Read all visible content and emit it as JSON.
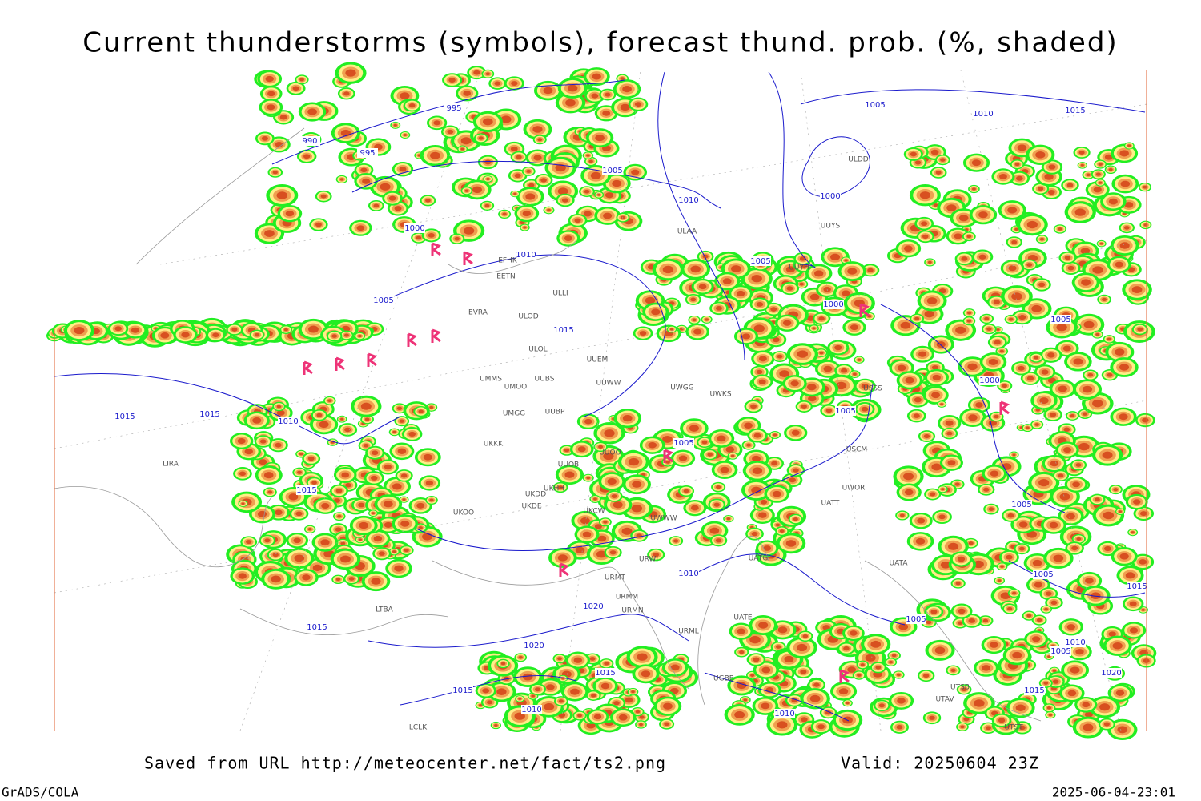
{
  "header": {
    "title": "Current thunderstorms (symbols), forecast thund. prob. (%, shaded)"
  },
  "footer": {
    "source": "Saved from URL http://meteocenter.net/fact/ts2.png",
    "valid": "Valid: 20250604 23Z",
    "software": "GrADS/COLA",
    "timestamp": "2025-06-04-23:01"
  },
  "isobar_labels": [
    995,
    990,
    995,
    1005,
    1010,
    1005,
    1010,
    1015,
    1000,
    1000,
    1010,
    1005,
    1005,
    1000,
    1015,
    1005,
    1000,
    1015,
    1015,
    1010,
    1005,
    1005,
    1015,
    1005,
    1010,
    1005,
    1020,
    1005,
    1015,
    1020,
    1015,
    1010,
    1005,
    1020,
    1015,
    1015,
    1010,
    1010,
    1015
  ],
  "station_labels": [
    "ULDD",
    "UUYS",
    "ULAA",
    "UUYH",
    "ULLI",
    "ULOD",
    "ULOL",
    "UUEM",
    "UUWW",
    "UMMS",
    "UMOO",
    "UUBS",
    "UWGG",
    "UWKS",
    "USSS",
    "UMGG",
    "UUBP",
    "UKKK",
    "UUOO",
    "UUOB",
    "UKHH",
    "UKDD",
    "UKDE",
    "UKCW",
    "UKOO",
    "UWWW",
    "UATT",
    "UWOR",
    "USCM",
    "URWI",
    "UATG",
    "UATA",
    "URMT",
    "URMM",
    "URMN",
    "UATE",
    "URML",
    "UGBB",
    "UTAV",
    "UTSB",
    "UTST",
    "LIRA",
    "LTBA",
    "LCLK",
    "EVRA",
    "EETN",
    "EFHK"
  ]
}
